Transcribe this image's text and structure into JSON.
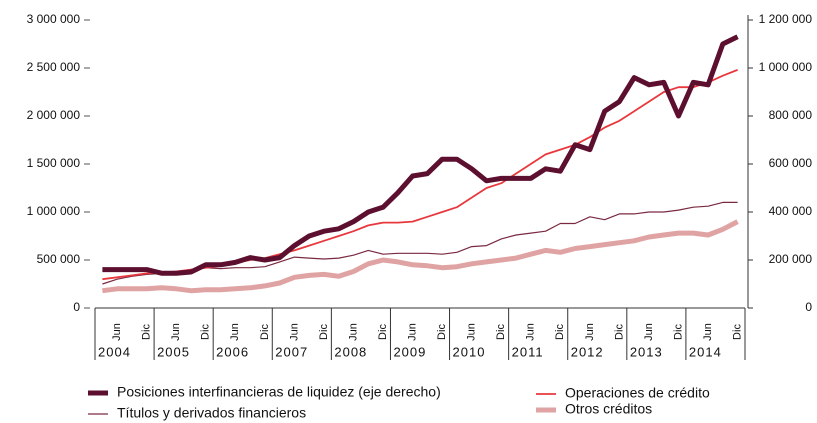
{
  "chart_data": {
    "type": "line",
    "categories": [
      null,
      "Jun",
      null,
      "Dic",
      null,
      "Jun",
      null,
      "Dic",
      null,
      "Jun",
      null,
      "Dic",
      null,
      "Jun",
      null,
      "Dic",
      null,
      "Jun",
      null,
      "Dic",
      null,
      "Jun",
      null,
      "Dic",
      null,
      "Jun",
      null,
      "Dic",
      null,
      "Jun",
      null,
      "Dic",
      null,
      "Jun",
      null,
      "Dic",
      null,
      "Jun",
      null,
      "Dic",
      null,
      "Jun",
      null,
      "Dic"
    ],
    "years": [
      "2004",
      "2005",
      "2006",
      "2007",
      "2008",
      "2009",
      "2010",
      "2011",
      "2012",
      "2013",
      "2014"
    ],
    "ylim": [
      0,
      3000000
    ],
    "yticks": [
      {
        "value": 0,
        "label": "0"
      },
      {
        "value": 500000,
        "label": "500 000"
      },
      {
        "value": 1000000,
        "label": "1 000 000"
      },
      {
        "value": 1500000,
        "label": "1 500 000"
      },
      {
        "value": 2000000,
        "label": "2 000 000"
      },
      {
        "value": 2500000,
        "label": "2 500 000"
      },
      {
        "value": 3000000,
        "label": "3 000 000"
      }
    ],
    "y2lim": [
      0,
      1200000
    ],
    "y2ticks": [
      {
        "value": 0,
        "label": "0"
      },
      {
        "value": 200000,
        "label": "200 000"
      },
      {
        "value": 400000,
        "label": "400 000"
      },
      {
        "value": 600000,
        "label": "600 000"
      },
      {
        "value": 800000,
        "label": "800 000"
      },
      {
        "value": 1000000,
        "label": "1 000 000"
      },
      {
        "value": 1200000,
        "label": "1 200 000"
      }
    ],
    "series": [
      {
        "name": "Posiciones interfinancieras de liquidez (eje derecho)",
        "color": "#5c0f2e",
        "axis": "y2",
        "width": 5,
        "values": [
          160000,
          160000,
          160000,
          160000,
          145000,
          145000,
          150000,
          180000,
          180000,
          190000,
          210000,
          200000,
          210000,
          260000,
          300000,
          320000,
          330000,
          360000,
          400000,
          420000,
          480000,
          550000,
          560000,
          620000,
          620000,
          580000,
          530000,
          540000,
          540000,
          540000,
          580000,
          570000,
          680000,
          660000,
          820000,
          860000,
          960000,
          930000,
          940000,
          800000,
          940000,
          930000,
          1100000,
          1130000
        ]
      },
      {
        "name": "Operaciones de crédito",
        "color": "#e8383d",
        "width": 1.8,
        "values": [
          300000,
          320000,
          340000,
          360000,
          370000,
          380000,
          400000,
          420000,
          440000,
          470000,
          500000,
          520000,
          560000,
          600000,
          650000,
          700000,
          750000,
          800000,
          860000,
          890000,
          890000,
          900000,
          950000,
          1000000,
          1050000,
          1150000,
          1250000,
          1300000,
          1400000,
          1500000,
          1600000,
          1650000,
          1700000,
          1780000,
          1880000,
          1950000,
          2050000,
          2150000,
          2250000,
          2300000,
          2300000,
          2350000,
          2420000,
          2480000
        ]
      },
      {
        "name": "Títulos y derivados financieros",
        "color": "#7a2a40",
        "width": 1.2,
        "values": [
          250000,
          300000,
          330000,
          350000,
          360000,
          380000,
          400000,
          420000,
          410000,
          420000,
          420000,
          430000,
          480000,
          530000,
          520000,
          510000,
          520000,
          550000,
          600000,
          560000,
          570000,
          570000,
          570000,
          560000,
          580000,
          640000,
          650000,
          720000,
          760000,
          780000,
          800000,
          880000,
          880000,
          950000,
          920000,
          980000,
          980000,
          1000000,
          1000000,
          1020000,
          1050000,
          1060000,
          1100000,
          1100000
        ]
      },
      {
        "name": "Otros créditos",
        "color": "#e0a3a3",
        "width": 5,
        "values": [
          180000,
          200000,
          200000,
          200000,
          210000,
          200000,
          180000,
          190000,
          190000,
          200000,
          210000,
          230000,
          260000,
          320000,
          340000,
          350000,
          330000,
          380000,
          460000,
          500000,
          480000,
          450000,
          440000,
          420000,
          430000,
          460000,
          480000,
          500000,
          520000,
          560000,
          600000,
          580000,
          620000,
          640000,
          660000,
          680000,
          700000,
          740000,
          760000,
          780000,
          780000,
          760000,
          820000,
          900000
        ]
      }
    ]
  }
}
